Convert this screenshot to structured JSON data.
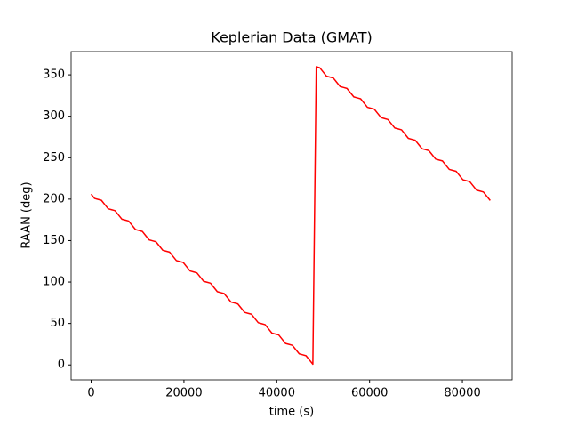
{
  "chart_data": {
    "type": "line",
    "title": "Keplerian Data (GMAT)",
    "xlabel": "time (s)",
    "ylabel": "RAAN (deg)",
    "x": [
      0,
      735,
      1470,
      2205,
      2940,
      3675,
      4410,
      5145,
      5880,
      6615,
      7350,
      8085,
      8820,
      9555,
      10290,
      11025,
      11760,
      12495,
      13230,
      13965,
      14700,
      15435,
      16170,
      16905,
      17640,
      18375,
      19110,
      19845,
      20580,
      21315,
      22050,
      22785,
      23520,
      24255,
      24990,
      25725,
      26460,
      27195,
      27930,
      28665,
      29400,
      30135,
      30870,
      31605,
      32340,
      33075,
      33810,
      34545,
      35280,
      36015,
      36750,
      37485,
      38220,
      38955,
      39690,
      40425,
      41160,
      41895,
      42630,
      43365,
      44100,
      44835,
      45570,
      46305,
      47040,
      47775,
      48510,
      49245,
      49980,
      50715,
      51450,
      52185,
      52920,
      53655,
      54390,
      55125,
      55860,
      56595,
      57330,
      58065,
      58800,
      59535,
      60270,
      61005,
      61740,
      62475,
      63210,
      63945,
      64680,
      65415,
      66150,
      66885,
      67620,
      68355,
      69090,
      69825,
      70560,
      71295,
      72030,
      72765,
      73500,
      74235,
      74970,
      75705,
      76440,
      77175,
      77910,
      78645,
      79380,
      80115,
      80850,
      81585,
      82320,
      83055,
      83790,
      84525,
      85260,
      85995
    ],
    "series": [
      {
        "color": "#ff0000",
        "values": [
          206,
          200.875,
          199.75,
          198.625,
          193.5,
          188.375,
          187.25,
          186.125,
          181,
          175.875,
          174.75,
          173.625,
          168.5,
          163.375,
          162.25,
          161.125,
          156,
          150.875,
          149.75,
          148.625,
          143.5,
          138.375,
          137.25,
          136.125,
          131,
          125.875,
          124.75,
          123.625,
          118.5,
          113.375,
          112.25,
          111.125,
          106,
          100.875,
          99.75,
          98.625,
          93.5,
          88.375,
          87.25,
          86.125,
          81,
          75.875,
          74.75,
          73.625,
          68.5,
          63.375,
          62.25,
          61.125,
          56,
          50.875,
          49.75,
          48.625,
          43.5,
          38.375,
          37.25,
          36.125,
          31,
          25.875,
          24.75,
          23.625,
          18.5,
          13.375,
          12.25,
          11.125,
          6,
          0.875,
          359.75,
          358.625,
          353.5,
          348.375,
          347.25,
          346.125,
          341,
          335.875,
          334.75,
          333.625,
          328.5,
          323.375,
          322.25,
          321.125,
          316,
          310.875,
          309.75,
          308.625,
          303.5,
          298.375,
          297.25,
          296.125,
          291,
          285.875,
          284.75,
          283.625,
          278.5,
          273.375,
          272.25,
          271.125,
          266,
          260.875,
          259.75,
          258.625,
          253.5,
          248.375,
          247.25,
          246.125,
          241,
          235.875,
          234.75,
          233.625,
          228.5,
          223.375,
          222.25,
          221.125,
          216,
          210.875,
          209.75,
          208.625,
          203.5,
          198.375
        ]
      }
    ],
    "xlim": [
      -4320,
      90720
    ],
    "xticks": [
      0,
      20000,
      40000,
      60000,
      80000
    ],
    "ylim": [
      -18,
      378
    ],
    "yticks": [
      0,
      50,
      100,
      150,
      200,
      250,
      300,
      350
    ],
    "grid": false
  }
}
